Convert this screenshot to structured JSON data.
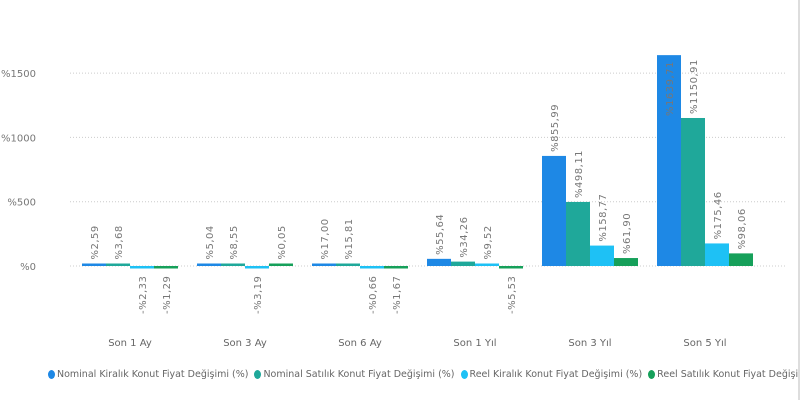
{
  "chart_data": {
    "type": "bar",
    "title": "",
    "xlabel": "",
    "ylabel": "",
    "ylim": [
      -100,
      1900
    ],
    "yticks": [
      0,
      500,
      1000,
      1500
    ],
    "ytick_labels": [
      "%0",
      "%500",
      "%1000",
      "%1500"
    ],
    "categories": [
      "Son 1 Ay",
      "Son 3 Ay",
      "Son 6 Ay",
      "Son 1 Yıl",
      "Son 3 Yıl",
      "Son 5 Yıl"
    ],
    "series": [
      {
        "name": "Nominal Kiralık Konut Fiyat Değişimi (%)",
        "color": "#1e88e5",
        "values": [
          2.59,
          5.04,
          17.0,
          55.64,
          855.99,
          1639.71
        ],
        "labels": [
          "%2,59",
          "%5,04",
          "%17,00",
          "%55,64",
          "%855,99",
          "%1639,71"
        ]
      },
      {
        "name": "Nominal Satılık Konut Fiyat Değişimi (%)",
        "color": "#1fa89a",
        "values": [
          3.68,
          8.55,
          15.81,
          34.26,
          498.11,
          1150.91
        ],
        "labels": [
          "%3,68",
          "%8,55",
          "%15,81",
          "%34,26",
          "%498,11",
          "%1150,91"
        ]
      },
      {
        "name": "Reel Kiralık Konut Fiyat Değişimi (%)",
        "color": "#1ec1f5",
        "values": [
          -2.33,
          -3.19,
          -0.66,
          9.52,
          158.77,
          175.46
        ],
        "labels": [
          "-%2,33",
          "-%3,19",
          "-%0,66",
          "%9,52",
          "%158,77",
          "%175,46"
        ]
      },
      {
        "name": "Reel Satılık Konut Fiyat Değişimi (%)",
        "color": "#16a05a",
        "values": [
          -1.29,
          0.05,
          -1.67,
          -5.53,
          61.9,
          98.06
        ],
        "labels": [
          "-%1,29",
          "%0,05",
          "-%1,67",
          "-%5,53",
          "%61,90",
          "%98,06"
        ]
      }
    ],
    "grid": true,
    "legend_position": "bottom"
  }
}
